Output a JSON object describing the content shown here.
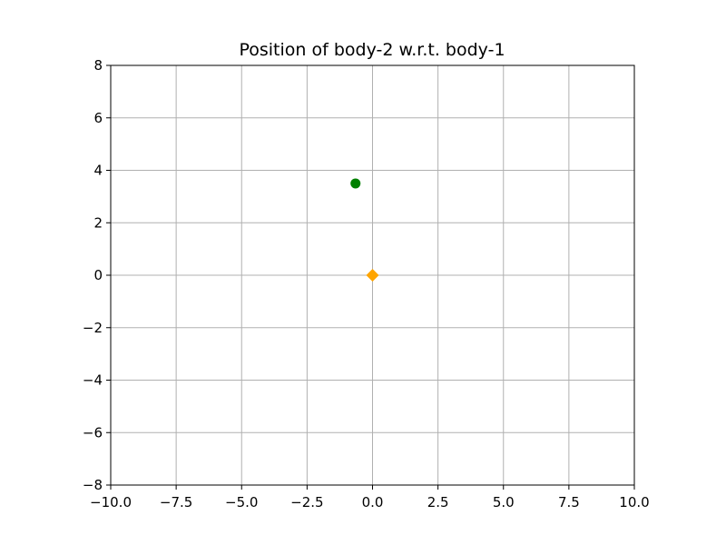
{
  "chart_data": {
    "type": "scatter",
    "title": "Position of body-2 w.r.t. body-1",
    "xlabel": "",
    "ylabel": "",
    "xlim": [
      -10,
      10
    ],
    "ylim": [
      -8,
      8
    ],
    "grid": true,
    "x_ticks": [
      -10,
      -7.5,
      -5,
      -2.5,
      0,
      2.5,
      5,
      7.5,
      10
    ],
    "x_tick_labels": [
      "−10.0",
      "−7.5",
      "−5.0",
      "−2.5",
      "0.0",
      "2.5",
      "5.0",
      "7.5",
      "10.0"
    ],
    "y_ticks": [
      -8,
      -6,
      -4,
      -2,
      0,
      2,
      4,
      6,
      8
    ],
    "y_tick_labels": [
      "−8",
      "−6",
      "−4",
      "−2",
      "0",
      "2",
      "4",
      "6",
      "8"
    ],
    "series": [
      {
        "marker": "circle",
        "color": "#008000",
        "points": [
          {
            "x": -0.65,
            "y": 3.5
          }
        ]
      },
      {
        "marker": "diamond",
        "color": "#ffa500",
        "points": [
          {
            "x": 0,
            "y": 0
          }
        ]
      }
    ]
  }
}
